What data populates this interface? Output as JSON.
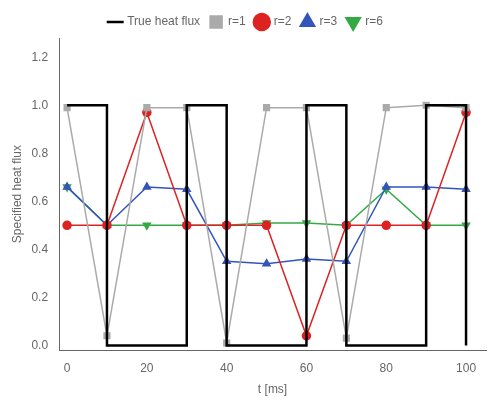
{
  "chart_data": {
    "type": "line",
    "x_label": "t [ms]",
    "y_label": "Specified heat flux",
    "series": [
      {
        "name": "True heat flux",
        "color": "#000000",
        "x": [
          0,
          0,
          10,
          10,
          30,
          30,
          40,
          40,
          60,
          60,
          70,
          70,
          90,
          90,
          100,
          100
        ],
        "values": [
          1,
          1,
          1,
          0,
          0,
          1,
          1,
          0,
          0,
          1,
          1,
          0,
          0,
          1,
          1,
          0
        ]
      },
      {
        "name": "r=1",
        "color": "#aaaaaa",
        "marker": "square",
        "x": [
          0,
          10,
          20,
          30,
          40,
          50,
          60,
          70,
          80,
          90,
          100
        ],
        "values": [
          0.99,
          0.04,
          0.99,
          0.99,
          0.01,
          0.99,
          0.99,
          0.03,
          0.99,
          1.0,
          0.99
        ]
      },
      {
        "name": "r=2",
        "color": "#dd2222",
        "marker": "circle",
        "x": [
          0,
          10,
          20,
          30,
          40,
          50,
          60,
          70,
          80,
          90,
          100
        ],
        "values": [
          0.5,
          0.5,
          0.97,
          0.5,
          0.5,
          0.5,
          0.04,
          0.5,
          0.5,
          0.5,
          0.97
        ]
      },
      {
        "name": "r=3",
        "color": "#3355bb",
        "marker": "triangle-up",
        "x": [
          0,
          10,
          20,
          30,
          40,
          50,
          60,
          70,
          80,
          90,
          100
        ],
        "values": [
          0.66,
          0.5,
          0.66,
          0.65,
          0.35,
          0.34,
          0.36,
          0.35,
          0.66,
          0.66,
          0.65
        ]
      },
      {
        "name": "r=6",
        "color": "#33aa44",
        "marker": "triangle-down",
        "x": [
          0,
          10,
          20,
          30,
          40,
          50,
          60,
          70,
          80,
          90,
          100
        ],
        "values": [
          0.66,
          0.5,
          0.5,
          0.5,
          0.5,
          0.51,
          0.51,
          0.5,
          0.65,
          0.5,
          0.5
        ]
      }
    ],
    "xlim": [
      -2,
      105
    ],
    "ylim": [
      -0.02,
      1.28
    ],
    "xticks": [
      0,
      20,
      40,
      60,
      80,
      100
    ],
    "yticks": [
      {
        "value": 0.0,
        "label": "0.0"
      },
      0.2,
      0.4,
      0.6,
      0.8,
      {
        "value": 1.0,
        "label": "1.0"
      },
      1.2
    ],
    "grid": false,
    "legend": "top"
  }
}
